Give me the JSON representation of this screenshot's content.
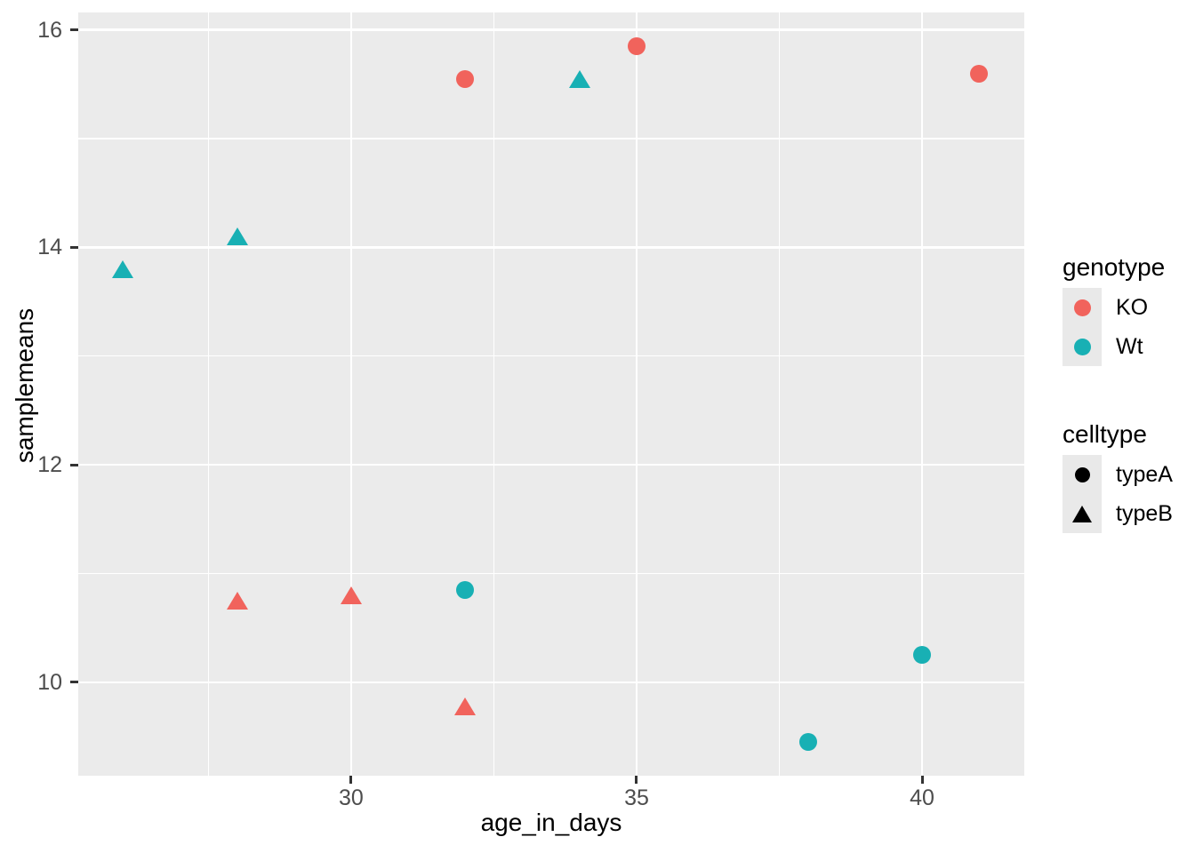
{
  "chart_data": {
    "type": "scatter",
    "title": "",
    "xlabel": "age_in_days",
    "ylabel": "samplemeans",
    "xlim": [
      25.22,
      41.79
    ],
    "ylim": [
      9.14,
      16.16
    ],
    "x_ticks": [
      30,
      35,
      40
    ],
    "x_minor_ticks": [
      27.5,
      32.5,
      37.5
    ],
    "y_ticks": [
      10,
      12,
      14,
      16
    ],
    "y_minor_ticks": [
      11,
      13,
      15
    ],
    "grid": "major+minor white on grey panel",
    "panel_bg": "#EBEBEB",
    "grid_color": "#FFFFFF",
    "tick_label_color": "#4d4d4d",
    "points": [
      {
        "x": 26,
        "y": 13.8,
        "genotype": "Wt",
        "celltype": "typeB"
      },
      {
        "x": 28,
        "y": 14.1,
        "genotype": "Wt",
        "celltype": "typeB"
      },
      {
        "x": 32,
        "y": 15.55,
        "genotype": "KO",
        "celltype": "typeA"
      },
      {
        "x": 34,
        "y": 15.55,
        "genotype": "Wt",
        "celltype": "typeB"
      },
      {
        "x": 35,
        "y": 15.85,
        "genotype": "KO",
        "celltype": "typeA"
      },
      {
        "x": 41,
        "y": 15.6,
        "genotype": "KO",
        "celltype": "typeA"
      },
      {
        "x": 28,
        "y": 10.75,
        "genotype": "KO",
        "celltype": "typeB"
      },
      {
        "x": 30,
        "y": 10.8,
        "genotype": "KO",
        "celltype": "typeB"
      },
      {
        "x": 32,
        "y": 10.85,
        "genotype": "Wt",
        "celltype": "typeA"
      },
      {
        "x": 32,
        "y": 9.78,
        "genotype": "KO",
        "celltype": "typeB"
      },
      {
        "x": 38,
        "y": 9.45,
        "genotype": "Wt",
        "celltype": "typeA"
      },
      {
        "x": 40,
        "y": 10.25,
        "genotype": "Wt",
        "celltype": "typeA"
      }
    ],
    "color_map": {
      "KO": "#F1635C",
      "Wt": "#18B0B4"
    },
    "shape_map": {
      "typeA": "circle",
      "typeB": "triangle"
    },
    "legend": {
      "position": "right",
      "groups": [
        {
          "title": "genotype",
          "entries": [
            {
              "label": "KO",
              "shape": "circle",
              "color": "#F1635C"
            },
            {
              "label": "Wt",
              "shape": "circle",
              "color": "#18B0B4"
            }
          ]
        },
        {
          "title": "celltype",
          "entries": [
            {
              "label": "typeA",
              "shape": "circle",
              "color": "#000000"
            },
            {
              "label": "typeB",
              "shape": "triangle",
              "color": "#000000"
            }
          ]
        }
      ]
    }
  }
}
